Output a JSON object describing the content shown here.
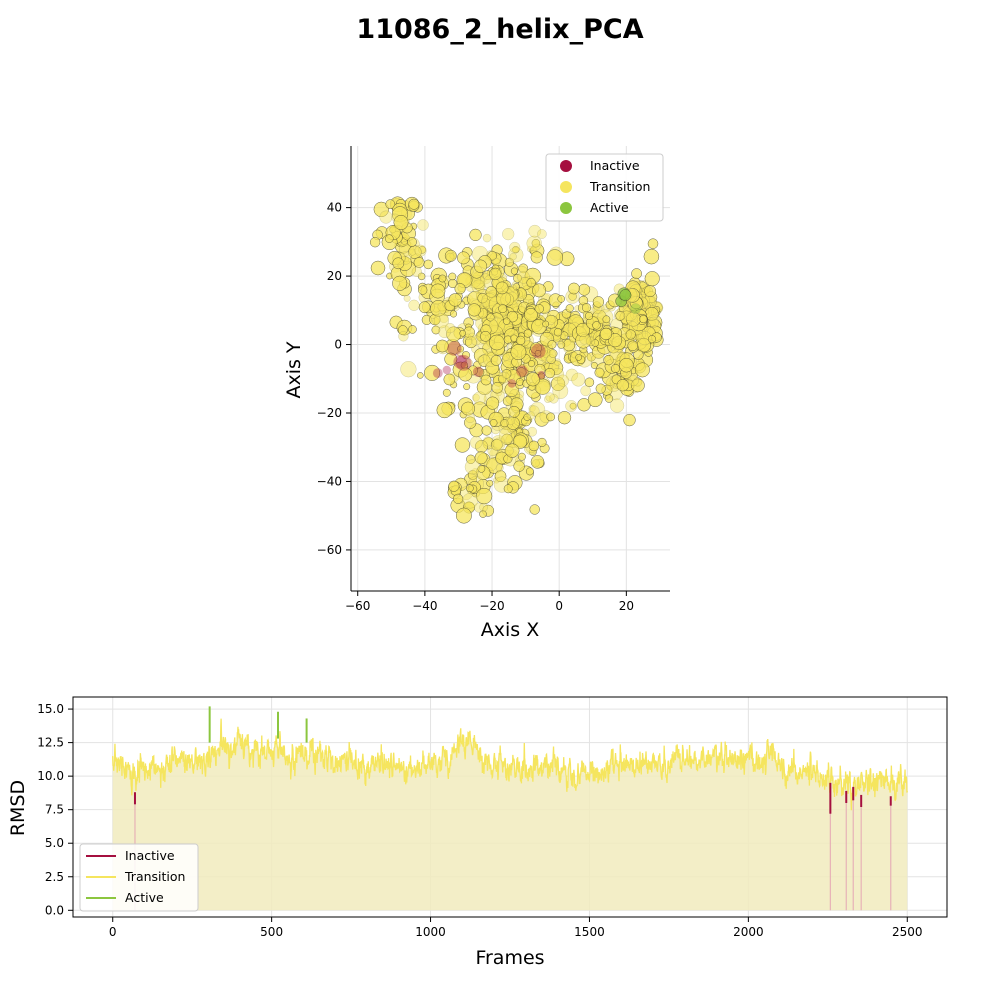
{
  "figure": {
    "title": "11086_2_helix_PCA"
  },
  "colors": {
    "inactive": "#a50f3f",
    "transition": "#f5e55e",
    "active": "#8cc63f",
    "fill": "#f1ebbd"
  },
  "chart_data": [
    {
      "type": "scatter",
      "xlabel": "Axis X",
      "ylabel": "Axis Y",
      "xlim": [
        -62,
        33
      ],
      "ylim": [
        -72,
        58
      ],
      "xticks": [
        -60,
        -40,
        -20,
        0,
        20
      ],
      "yticks": [
        -60,
        -40,
        -20,
        0,
        20,
        40
      ],
      "grid": true,
      "legend": {
        "placement": "top-right",
        "entries": [
          "Inactive",
          "Transition",
          "Active"
        ]
      },
      "clusters": [
        {
          "state": "Transition",
          "center": [
            -48,
            30
          ],
          "spread": [
            4,
            7
          ],
          "count": 60
        },
        {
          "state": "Transition",
          "center": [
            -38,
            12
          ],
          "spread": [
            8,
            9
          ],
          "count": 60
        },
        {
          "state": "Transition",
          "center": [
            -18,
            12
          ],
          "spread": [
            8,
            8
          ],
          "count": 200
        },
        {
          "state": "Transition",
          "center": [
            -12,
            -5
          ],
          "spread": [
            10,
            10
          ],
          "count": 220
        },
        {
          "state": "Transition",
          "center": [
            -15,
            -28
          ],
          "spread": [
            6,
            7
          ],
          "count": 90
        },
        {
          "state": "Transition",
          "center": [
            -27,
            -44
          ],
          "spread": [
            3,
            4
          ],
          "count": 30
        },
        {
          "state": "Transition",
          "center": [
            8,
            5
          ],
          "spread": [
            8,
            5
          ],
          "count": 150
        },
        {
          "state": "Transition",
          "center": [
            24,
            8
          ],
          "spread": [
            3,
            6
          ],
          "count": 130
        },
        {
          "state": "Transition",
          "center": [
            19,
            -7
          ],
          "spread": [
            3,
            6
          ],
          "count": 60
        },
        {
          "state": "Transition",
          "center": [
            -8,
            28
          ],
          "spread": [
            3,
            2
          ],
          "count": 10
        },
        {
          "state": "Inactive",
          "center": [
            -30,
            -5
          ],
          "spread": [
            4,
            3
          ],
          "count": 6
        },
        {
          "state": "Inactive",
          "center": [
            -8,
            -8
          ],
          "spread": [
            4,
            3
          ],
          "count": 4
        },
        {
          "state": "Active",
          "center": [
            20,
            13
          ],
          "spread": [
            2,
            2
          ],
          "count": 4
        }
      ]
    },
    {
      "type": "line",
      "xlabel": "Frames",
      "ylabel": "RMSD",
      "xlim": [
        -125,
        2625
      ],
      "ylim": [
        -0.5,
        15.9
      ],
      "xticks": [
        0,
        500,
        1000,
        1500,
        2000,
        2500
      ],
      "yticks": [
        0.0,
        2.5,
        5.0,
        7.5,
        10.0,
        12.5,
        15.0
      ],
      "ytick_labels": [
        "0.0",
        "2.5",
        "5.0",
        "7.5",
        "10.0",
        "12.5",
        "15.0"
      ],
      "grid": true,
      "legend": {
        "placement": "bottom-left",
        "entries": [
          "Inactive",
          "Transition",
          "Active"
        ]
      },
      "n_frames": 2500,
      "baseline": [
        [
          0,
          11.8
        ],
        [
          20,
          11.0
        ],
        [
          60,
          10.0
        ],
        [
          100,
          10.2
        ],
        [
          150,
          10.6
        ],
        [
          200,
          11.4
        ],
        [
          250,
          11.0
        ],
        [
          300,
          11.5
        ],
        [
          350,
          12.0
        ],
        [
          400,
          12.2
        ],
        [
          450,
          11.8
        ],
        [
          500,
          12.0
        ],
        [
          550,
          11.8
        ],
        [
          600,
          11.7
        ],
        [
          650,
          11.5
        ],
        [
          700,
          10.9
        ],
        [
          750,
          11.0
        ],
        [
          800,
          10.7
        ],
        [
          850,
          11.1
        ],
        [
          900,
          10.9
        ],
        [
          950,
          10.8
        ],
        [
          1000,
          11.0
        ],
        [
          1050,
          11.2
        ],
        [
          1100,
          12.2
        ],
        [
          1120,
          12.8
        ],
        [
          1150,
          11.2
        ],
        [
          1200,
          10.8
        ],
        [
          1300,
          10.5
        ],
        [
          1400,
          10.5
        ],
        [
          1500,
          10.4
        ],
        [
          1600,
          10.6
        ],
        [
          1700,
          10.8
        ],
        [
          1800,
          11.3
        ],
        [
          1900,
          11.5
        ],
        [
          2000,
          11.0
        ],
        [
          2050,
          10.8
        ],
        [
          2070,
          12.0
        ],
        [
          2100,
          10.6
        ],
        [
          2200,
          10.2
        ],
        [
          2300,
          9.6
        ],
        [
          2400,
          9.5
        ],
        [
          2500,
          9.6
        ]
      ],
      "spikes": [
        {
          "frame": 305,
          "state": "Active",
          "from": 12.5,
          "to": 15.2
        },
        {
          "frame": 520,
          "state": "Active",
          "from": 12.8,
          "to": 14.8
        },
        {
          "frame": 610,
          "state": "Active",
          "from": 12.5,
          "to": 14.3
        },
        {
          "frame": 70,
          "state": "Inactive",
          "from": 7.9,
          "to": 8.8
        },
        {
          "frame": 2258,
          "state": "Inactive",
          "from": 7.2,
          "to": 9.5
        },
        {
          "frame": 2308,
          "state": "Inactive",
          "from": 8.0,
          "to": 8.9
        },
        {
          "frame": 2330,
          "state": "Inactive",
          "from": 8.2,
          "to": 9.2
        },
        {
          "frame": 2355,
          "state": "Inactive",
          "from": 7.7,
          "to": 8.6
        },
        {
          "frame": 2448,
          "state": "Inactive",
          "from": 7.8,
          "to": 8.5
        }
      ]
    }
  ]
}
